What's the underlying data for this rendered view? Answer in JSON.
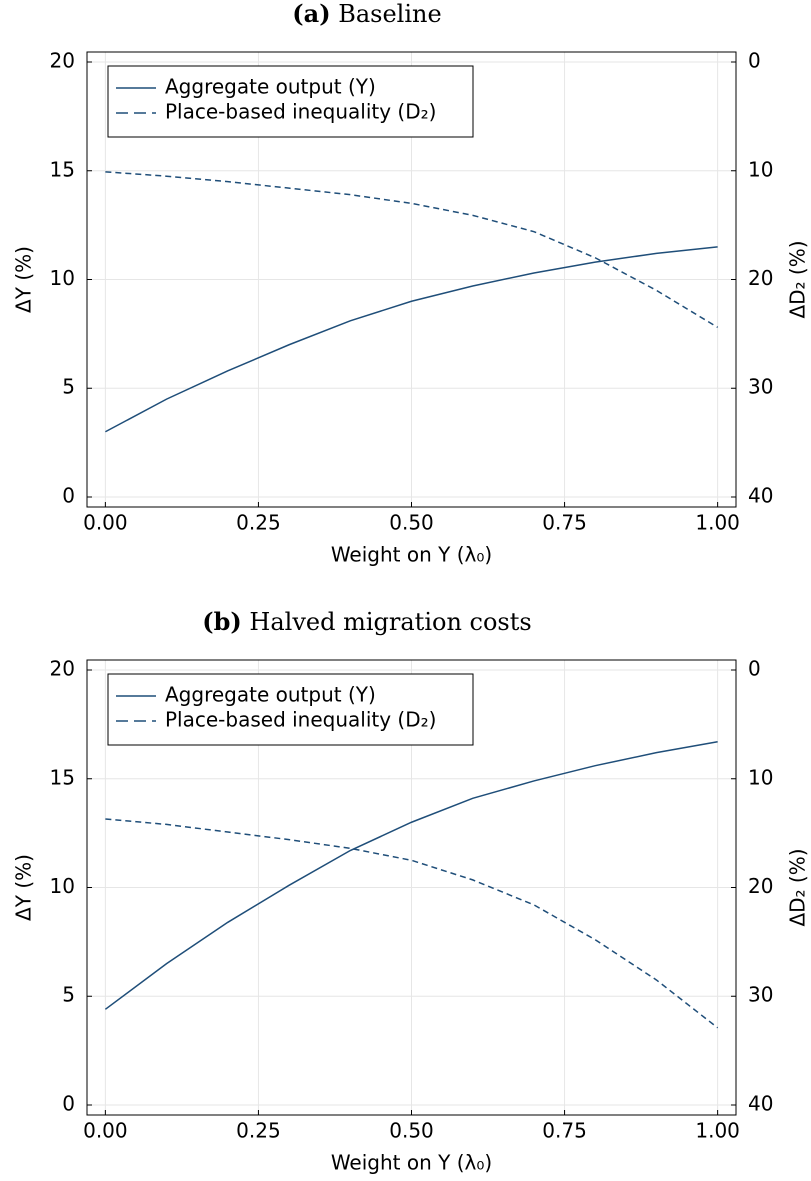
{
  "chart_data": [
    {
      "type": "line",
      "title_label": "(a)",
      "title": "Baseline",
      "xlabel": "Weight on Y (λ₀)",
      "ylabel": "ΔY (%)",
      "y2label": "ΔD₂ (%)",
      "x": [
        0,
        0.1,
        0.2,
        0.3,
        0.4,
        0.5,
        0.6,
        0.7,
        0.8,
        0.9,
        1.0
      ],
      "series": [
        {
          "name": "Aggregate output (Y)",
          "color": "#1f4e79",
          "style": "solid",
          "values": [
            3.0,
            4.5,
            5.8,
            7.0,
            8.1,
            9.0,
            9.7,
            10.3,
            10.8,
            11.2,
            11.5
          ]
        },
        {
          "name": "Place-based inequality (D₂)",
          "color": "#1f4e79",
          "style": "dashed",
          "axis": "y2",
          "values": [
            10.1,
            10.5,
            11.0,
            11.6,
            12.2,
            13.0,
            14.1,
            15.6,
            18.0,
            21.0,
            24.4
          ]
        }
      ],
      "xlim": [
        -0.03,
        1.03
      ],
      "xticks": [
        {
          "value": 0,
          "label": "0.00"
        },
        {
          "value": 0.25,
          "label": "0.25"
        },
        {
          "value": 0.5,
          "label": "0.50"
        },
        {
          "value": 0.75,
          "label": "0.75"
        },
        {
          "value": 1,
          "label": "1.00"
        }
      ],
      "ylim": [
        -0.46,
        20.46
      ],
      "yticks": [
        0,
        5,
        10,
        15,
        20
      ],
      "y2lim": [
        40.92,
        -0.92
      ],
      "y2ticks": [
        0,
        10,
        20,
        30,
        40
      ],
      "grid": true,
      "legend": "top-left"
    },
    {
      "type": "line",
      "title_label": "(b)",
      "title": "Halved migration costs",
      "xlabel": "Weight on Y (λ₀)",
      "ylabel": "ΔY (%)",
      "y2label": "ΔD₂ (%)",
      "x": [
        0,
        0.1,
        0.2,
        0.3,
        0.4,
        0.5,
        0.6,
        0.7,
        0.8,
        0.9,
        1.0
      ],
      "series": [
        {
          "name": "Aggregate output (Y)",
          "color": "#1f4e79",
          "style": "solid",
          "values": [
            4.4,
            6.5,
            8.4,
            10.1,
            11.7,
            13.0,
            14.1,
            14.9,
            15.6,
            16.2,
            16.7
          ]
        },
        {
          "name": "Place-based inequality (D₂)",
          "color": "#1f4e79",
          "style": "dashed",
          "axis": "y2",
          "values": [
            13.7,
            14.2,
            14.9,
            15.6,
            16.4,
            17.5,
            19.3,
            21.6,
            24.8,
            28.5,
            32.9
          ]
        }
      ],
      "xlim": [
        -0.03,
        1.03
      ],
      "xticks": [
        {
          "value": 0,
          "label": "0.00"
        },
        {
          "value": 0.25,
          "label": "0.25"
        },
        {
          "value": 0.5,
          "label": "0.50"
        },
        {
          "value": 0.75,
          "label": "0.75"
        },
        {
          "value": 1,
          "label": "1.00"
        }
      ],
      "ylim": [
        -0.46,
        20.46
      ],
      "yticks": [
        0,
        5,
        10,
        15,
        20
      ],
      "y2lim": [
        40.92,
        -0.92
      ],
      "y2ticks": [
        0,
        10,
        20,
        30,
        40
      ],
      "grid": true,
      "legend": "top-left"
    }
  ]
}
